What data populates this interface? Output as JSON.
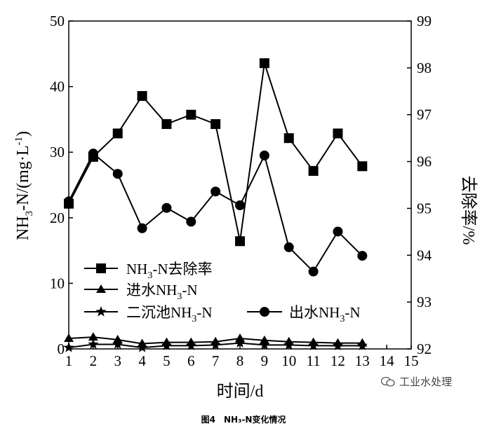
{
  "chart_data": {
    "type": "line",
    "x": [
      1,
      2,
      3,
      4,
      5,
      6,
      7,
      8,
      9,
      10,
      11,
      12,
      13
    ],
    "xticks": [
      "1",
      "2",
      "3",
      "4",
      "5",
      "6",
      "7",
      "8",
      "9",
      "10",
      "11",
      "12",
      "13",
      "14",
      "15"
    ],
    "xlim": [
      1,
      15
    ],
    "xlabel": "时间/d",
    "ylabel_left_parts": [
      "NH",
      "3",
      "-N/(mg·L",
      "-1",
      ")"
    ],
    "ylabel_right": "去除率/%",
    "ylim_left": [
      0,
      50
    ],
    "ylim_right": [
      92,
      99
    ],
    "yticks_left": [
      "0",
      "10",
      "20",
      "30",
      "40",
      "50"
    ],
    "yticks_right": [
      "92",
      "93",
      "94",
      "95",
      "96",
      "97",
      "98",
      "99"
    ],
    "series": [
      {
        "name": "NH3-N去除率",
        "label_parts": [
          "NH",
          "3",
          "-N去除率"
        ],
        "axis": "right",
        "marker": "square",
        "values": [
          95.1,
          96.1,
          96.6,
          97.4,
          96.8,
          97.0,
          96.8,
          94.3,
          98.1,
          96.5,
          95.8,
          96.6,
          95.9
        ]
      },
      {
        "name": "进水NH3-N",
        "label_parts": [
          "进水NH",
          "3",
          "-N"
        ],
        "axis": "left",
        "marker": "triangle",
        "values": [
          1.6,
          1.8,
          1.4,
          0.8,
          1.0,
          1.0,
          1.1,
          1.6,
          1.3,
          1.1,
          1.0,
          0.9,
          0.9
        ]
      },
      {
        "name": "二沉池NH3-N",
        "label_parts": [
          "二沉池NH",
          "3",
          "-N"
        ],
        "axis": "left",
        "marker": "star",
        "values": [
          0.2,
          0.7,
          0.7,
          0.2,
          0.5,
          0.5,
          0.6,
          0.9,
          0.6,
          0.6,
          0.5,
          0.5,
          0.5
        ]
      },
      {
        "name": "出水NH3-N",
        "label_parts": [
          "出水NH",
          "3",
          "-N"
        ],
        "axis": "left",
        "marker": "circle",
        "values": [
          22.5,
          29.8,
          26.7,
          18.4,
          21.5,
          19.4,
          24.0,
          21.9,
          29.5,
          15.5,
          11.8,
          17.9,
          14.2
        ]
      }
    ]
  },
  "caption": "图4　NH₃-N变化情况",
  "watermark": "工业水处理"
}
